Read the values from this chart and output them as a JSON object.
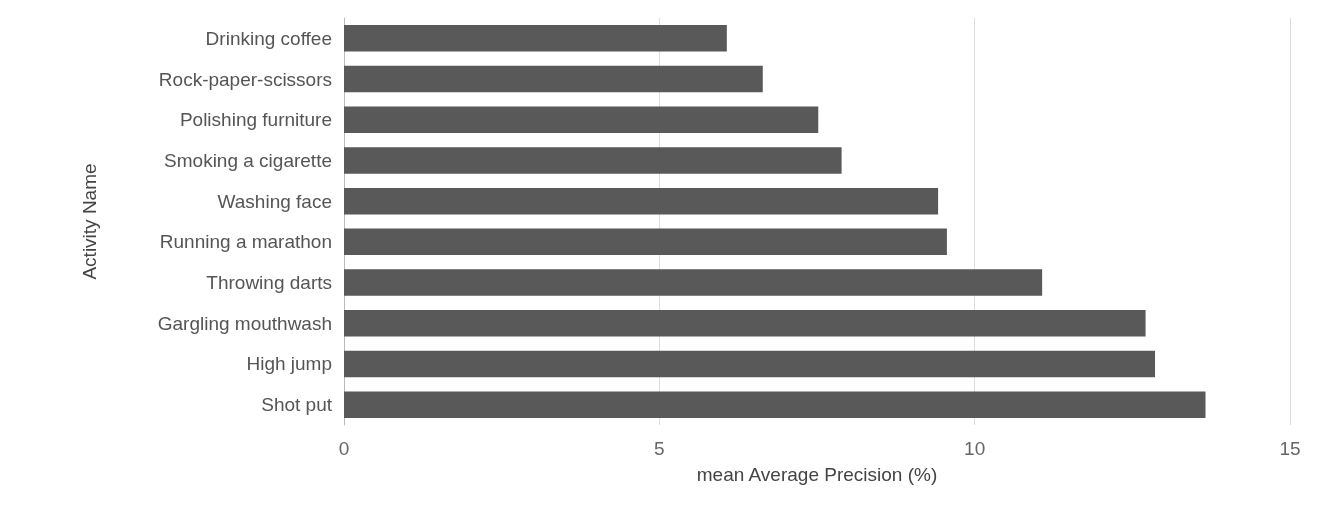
{
  "chart_data": {
    "type": "bar",
    "orientation": "horizontal",
    "xlabel": "mean Average Precision (%)",
    "ylabel": "Activity Name",
    "categories": [
      "Drinking coffee",
      "Rock-paper-scissors",
      "Polishing furniture",
      "Smoking a cigarette",
      "Washing face",
      "Running a marathon",
      "Throwing darts",
      "Gargling mouthwash",
      "High jump",
      "Shot put"
    ],
    "values": [
      6.07,
      6.64,
      7.52,
      7.89,
      9.42,
      9.56,
      11.07,
      12.71,
      12.86,
      13.66
    ],
    "color": "#595959",
    "xlim": [
      0,
      15
    ],
    "xticks": [
      0,
      5,
      10,
      15
    ],
    "grid": "x"
  }
}
